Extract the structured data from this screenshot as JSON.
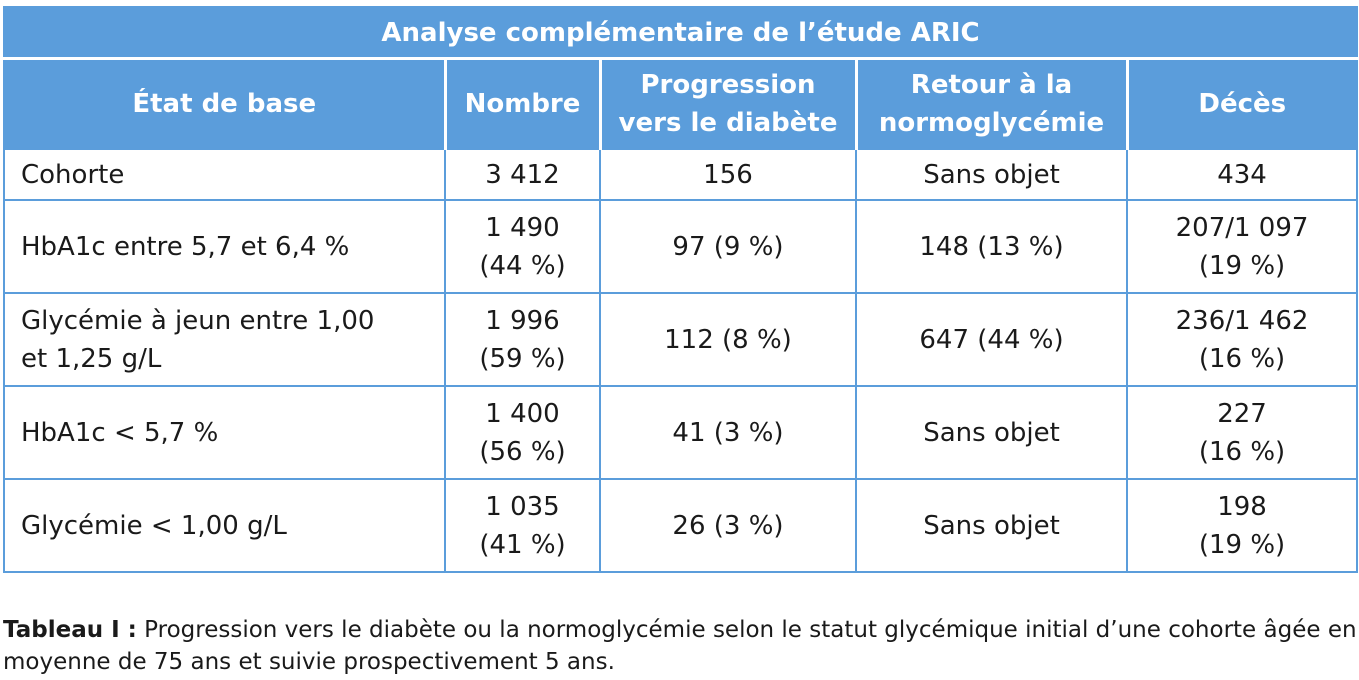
{
  "table": {
    "title": "Analyse complémentaire de l’étude ARIC",
    "headers": {
      "etat": "État de base",
      "nombre": "Nombre",
      "progression_l1": "Progression",
      "progression_l2": "vers le diabète",
      "retour_l1": "Retour à la",
      "retour_l2": "normoglycémie",
      "deces": "Décès"
    },
    "rows": [
      {
        "etat_l1": "Cohorte",
        "etat_l2": "",
        "nombre_l1": "3 412",
        "nombre_l2": "",
        "progression": "156",
        "retour": "Sans objet",
        "deces_l1": "434",
        "deces_l2": ""
      },
      {
        "etat_l1": "HbA1c entre 5,7 et 6,4 %",
        "etat_l2": "",
        "nombre_l1": "1 490",
        "nombre_l2": "(44 %)",
        "progression": "97 (9 %)",
        "retour": "148 (13 %)",
        "deces_l1": "207/1 097",
        "deces_l2": "(19 %)"
      },
      {
        "etat_l1": "Glycémie à jeun entre 1,00",
        "etat_l2": "et 1,25 g/L",
        "nombre_l1": "1 996",
        "nombre_l2": "(59 %)",
        "progression": "112 (8 %)",
        "retour": "647 (44 %)",
        "deces_l1": "236/1 462",
        "deces_l2": "(16 %)"
      },
      {
        "etat_l1": "HbA1c < 5,7 %",
        "etat_l2": "",
        "nombre_l1": "1 400",
        "nombre_l2": "(56 %)",
        "progression": "41 (3 %)",
        "retour": "Sans objet",
        "deces_l1": "227",
        "deces_l2": "(16 %)"
      },
      {
        "etat_l1": "Glycémie < 1,00 g/L",
        "etat_l2": "",
        "nombre_l1": "1 035",
        "nombre_l2": "(41 %)",
        "progression": "26 (3 %)",
        "retour": "Sans objet",
        "deces_l1": "198",
        "deces_l2": "(19 %)"
      }
    ]
  },
  "caption": {
    "label": "Tableau I :",
    "text": " Progression vers le diabète ou la normoglycémie selon le statut glycémique initial d’une cohorte âgée en moyenne de 75 ans et suivie prospectivement 5 ans."
  },
  "colors": {
    "header_bg": "#5b9ddb",
    "header_text": "#ffffff",
    "border": "#5b9ddb"
  }
}
